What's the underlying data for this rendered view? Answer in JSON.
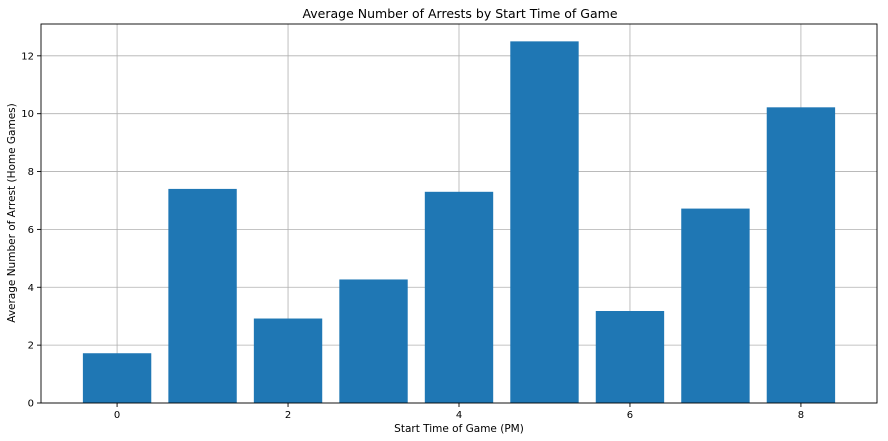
{
  "chart_data": {
    "type": "bar",
    "title": "Average Number of Arrests by Start Time of Game",
    "xlabel": "Start Time of Game (PM)",
    "ylabel": "Average Number of Arrest (Home Games)",
    "x": [
      0,
      1,
      2,
      3,
      4,
      5,
      6,
      7,
      8
    ],
    "values": [
      1.72,
      7.4,
      2.92,
      4.27,
      7.3,
      12.5,
      3.18,
      6.72,
      10.22
    ],
    "xticks": [
      0,
      2,
      4,
      6,
      8
    ],
    "yticks": [
      0,
      2,
      4,
      6,
      8,
      10,
      12
    ],
    "xlim": [
      -0.89,
      8.89
    ],
    "ylim": [
      0,
      13.1
    ],
    "grid": true,
    "bar_color": "#1f77b4"
  }
}
